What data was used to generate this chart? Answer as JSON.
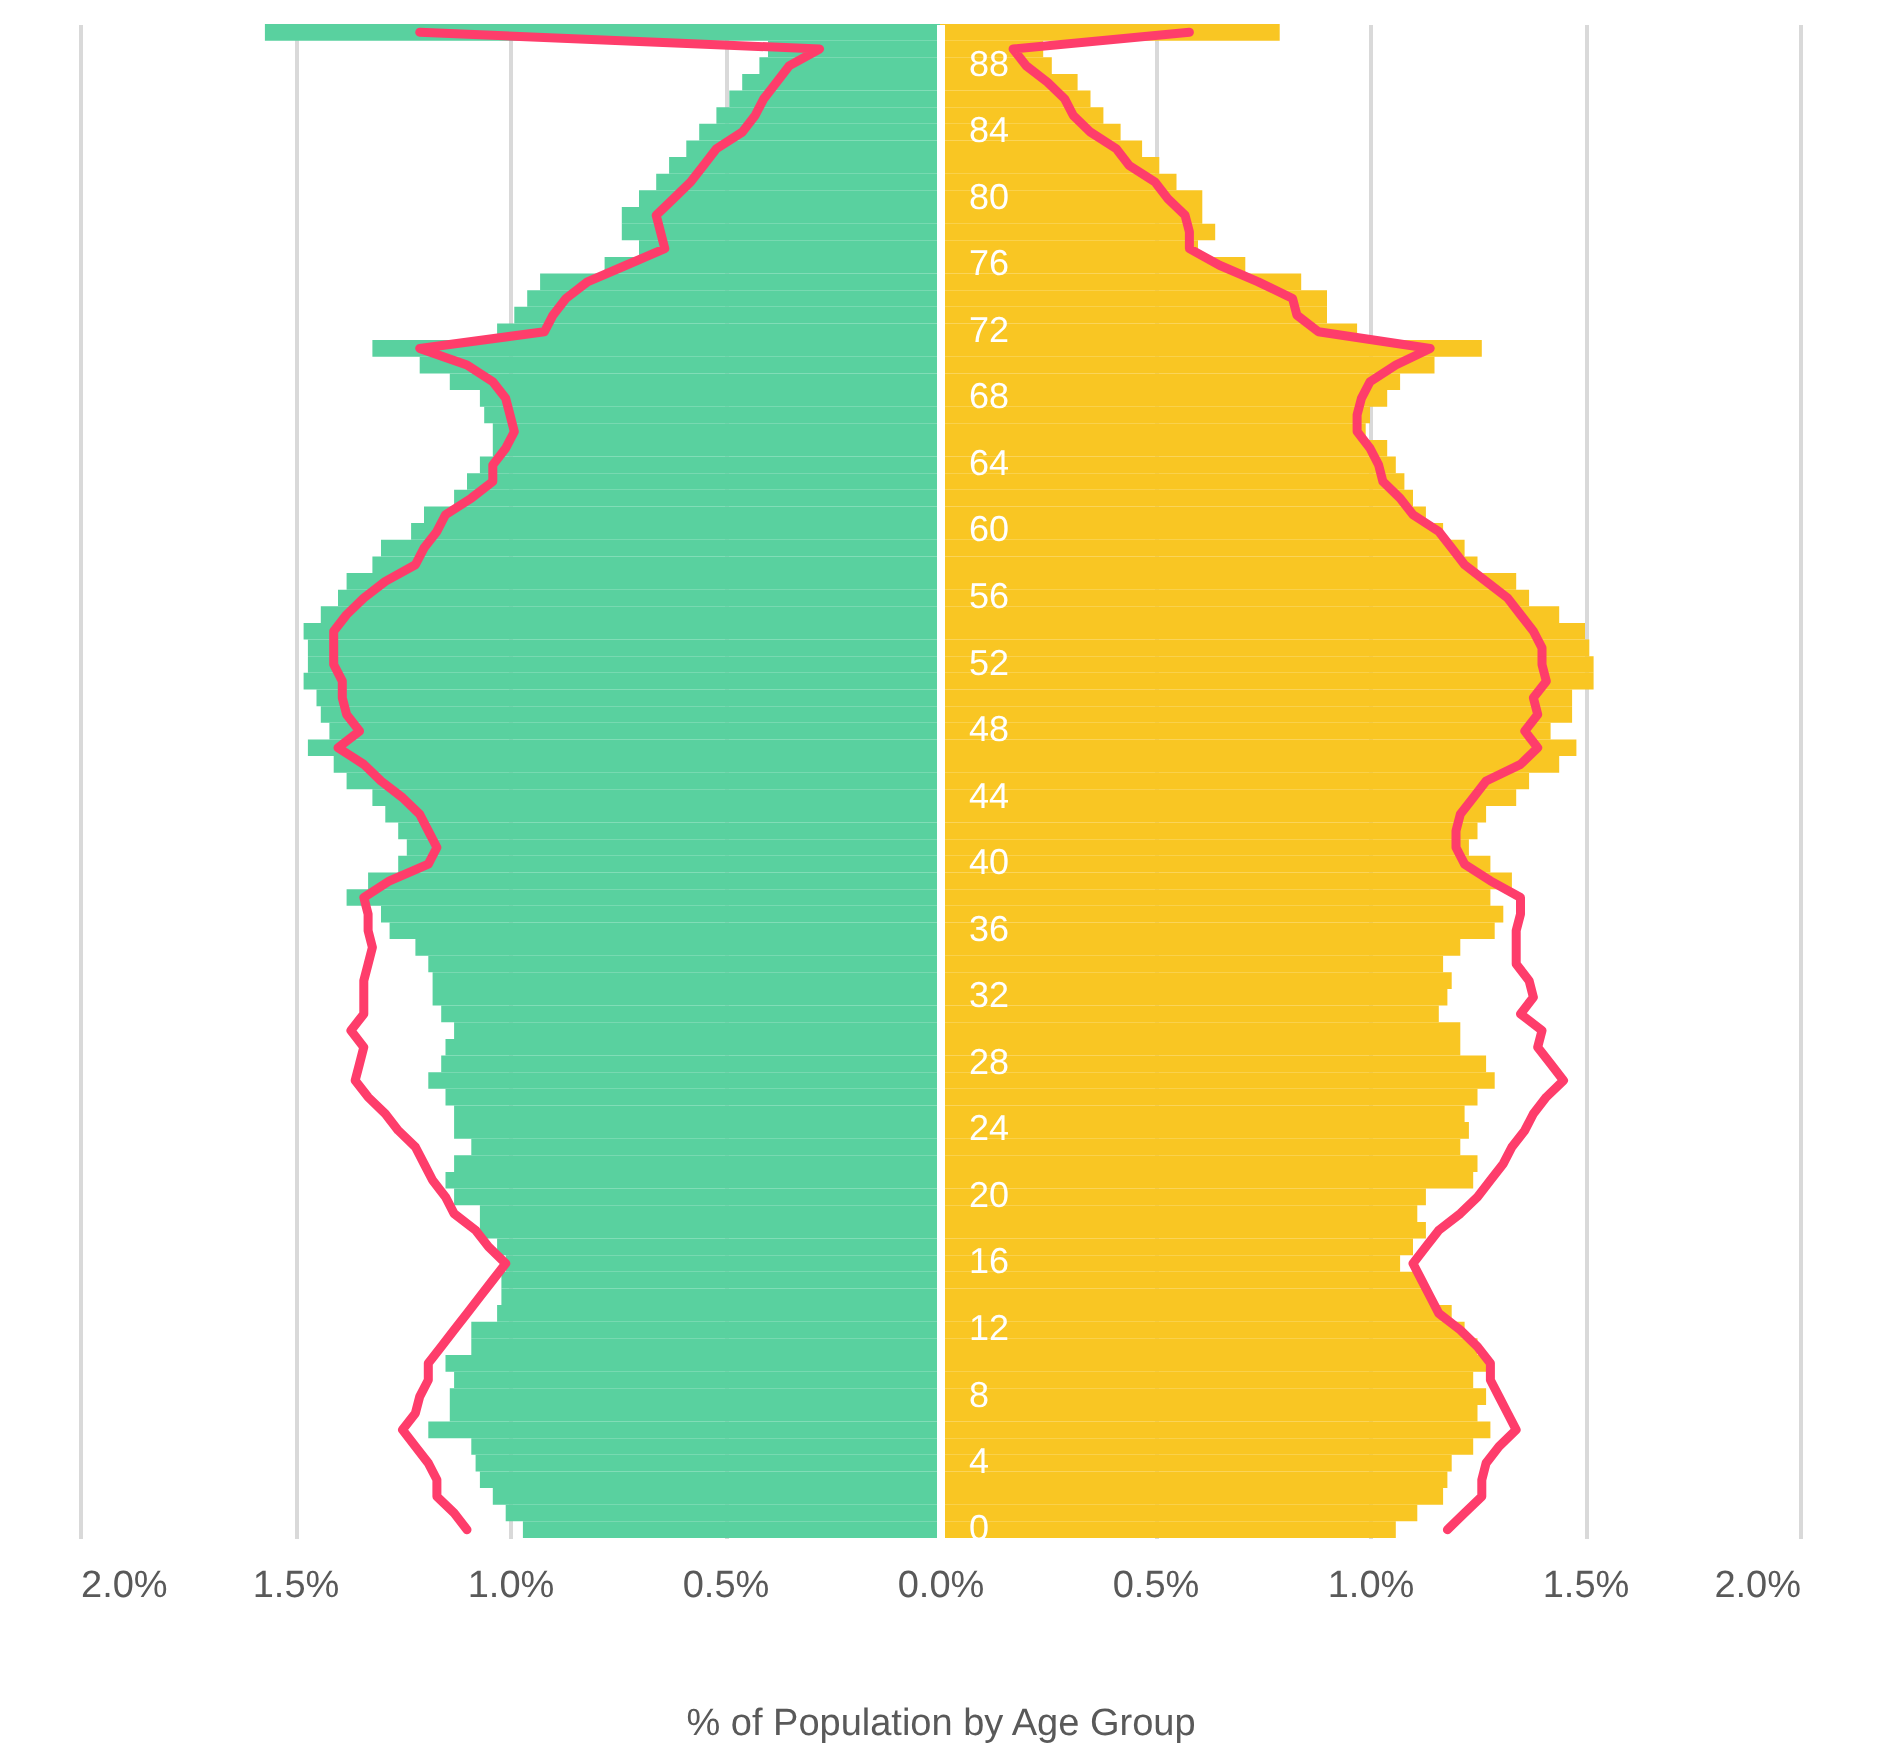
{
  "chart_data": {
    "type": "bar",
    "orientation": "horizontal",
    "xlabel": "% of Population by Age Group",
    "categories": [
      null,
      null,
      "88",
      null,
      null,
      null,
      "84",
      null,
      null,
      null,
      "80",
      null,
      null,
      null,
      "76",
      null,
      null,
      null,
      "72",
      null,
      null,
      null,
      "68",
      null,
      null,
      null,
      "64",
      null,
      null,
      null,
      "60",
      null,
      null,
      null,
      "56",
      null,
      null,
      null,
      "52",
      null,
      null,
      null,
      "48",
      null,
      null,
      null,
      "44",
      null,
      null,
      null,
      "40",
      null,
      null,
      null,
      "36",
      null,
      null,
      null,
      "32",
      null,
      null,
      null,
      "28",
      null,
      null,
      null,
      "24",
      null,
      null,
      null,
      "20",
      null,
      null,
      null,
      "16",
      null,
      null,
      null,
      "12",
      null,
      null,
      null,
      "8",
      null,
      null,
      null,
      "4",
      null,
      null,
      null,
      "0"
    ],
    "series": [
      {
        "color": "#59d19f",
        "values": [
          -1.57,
          -0.4,
          -0.42,
          -0.46,
          -0.49,
          -0.52,
          -0.56,
          -0.59,
          -0.63,
          -0.66,
          -0.7,
          -0.74,
          -0.74,
          -0.7,
          -0.78,
          -0.93,
          -0.96,
          -0.99,
          -1.03,
          -1.32,
          -1.21,
          -1.14,
          -1.07,
          -1.06,
          -1.04,
          -1.04,
          -1.07,
          -1.1,
          -1.13,
          -1.2,
          -1.23,
          -1.3,
          -1.32,
          -1.38,
          -1.4,
          -1.44,
          -1.48,
          -1.47,
          -1.47,
          -1.48,
          -1.45,
          -1.44,
          -1.42,
          -1.47,
          -1.41,
          -1.38,
          -1.32,
          -1.29,
          -1.26,
          -1.24,
          -1.26,
          -1.33,
          -1.38,
          -1.3,
          -1.28,
          -1.22,
          -1.19,
          -1.18,
          -1.18,
          -1.16,
          -1.13,
          -1.15,
          -1.16,
          -1.19,
          -1.15,
          -1.13,
          -1.13,
          -1.09,
          -1.13,
          -1.15,
          -1.13,
          -1.07,
          -1.07,
          -1.03,
          -1.01,
          -1.02,
          -1.02,
          -1.03,
          -1.09,
          -1.09,
          -1.15,
          -1.13,
          -1.14,
          -1.14,
          -1.19,
          -1.09,
          -1.08,
          -1.07,
          -1.04,
          -1.01,
          -0.97
        ]
      },
      {
        "color": "#f9c623",
        "values": [
          0.79,
          0.24,
          0.26,
          0.32,
          0.35,
          0.38,
          0.42,
          0.47,
          0.51,
          0.55,
          0.61,
          0.61,
          0.64,
          0.6,
          0.71,
          0.84,
          0.9,
          0.9,
          0.97,
          1.26,
          1.15,
          1.07,
          1.04,
          1.0,
          0.99,
          1.04,
          1.06,
          1.08,
          1.1,
          1.13,
          1.17,
          1.22,
          1.25,
          1.34,
          1.37,
          1.44,
          1.5,
          1.51,
          1.52,
          1.52,
          1.47,
          1.47,
          1.42,
          1.48,
          1.44,
          1.37,
          1.34,
          1.27,
          1.25,
          1.23,
          1.28,
          1.33,
          1.28,
          1.31,
          1.29,
          1.21,
          1.17,
          1.19,
          1.18,
          1.16,
          1.21,
          1.21,
          1.27,
          1.29,
          1.25,
          1.22,
          1.23,
          1.21,
          1.25,
          1.24,
          1.13,
          1.11,
          1.13,
          1.1,
          1.07,
          1.12,
          1.14,
          1.19,
          1.22,
          1.25,
          1.27,
          1.24,
          1.27,
          1.25,
          1.28,
          1.24,
          1.19,
          1.18,
          1.17,
          1.11,
          1.06
        ]
      },
      {
        "type": "line",
        "color": "#fe3d6b",
        "values": [
          -1.21,
          -0.28,
          -0.35,
          -0.38,
          -0.41,
          -0.43,
          -0.46,
          -0.52,
          -0.55,
          -0.58,
          -0.62,
          -0.66,
          -0.65,
          -0.64,
          -0.73,
          -0.82,
          -0.87,
          -0.9,
          -0.92,
          -1.21,
          -1.1,
          -1.04,
          -1.01,
          -1.0,
          -0.99,
          -1.01,
          -1.04,
          -1.04,
          -1.09,
          -1.15,
          -1.17,
          -1.2,
          -1.22,
          -1.29,
          -1.34,
          -1.38,
          -1.41,
          -1.41,
          -1.41,
          -1.39,
          -1.39,
          -1.38,
          -1.35,
          -1.4,
          -1.34,
          -1.3,
          -1.25,
          -1.21,
          -1.19,
          -1.17,
          -1.19,
          -1.28,
          -1.34,
          -1.33,
          -1.33,
          -1.32,
          -1.33,
          -1.34,
          -1.34,
          -1.34,
          -1.37,
          -1.34,
          -1.35,
          -1.36,
          -1.33,
          -1.29,
          -1.26,
          -1.22,
          -1.2,
          -1.18,
          -1.15,
          -1.13,
          -1.08,
          -1.05,
          -1.01,
          -1.04,
          -1.07,
          -1.1,
          -1.13,
          -1.16,
          -1.19,
          -1.19,
          -1.21,
          -1.22,
          -1.25,
          -1.22,
          -1.19,
          -1.17,
          -1.17,
          -1.13,
          -1.1
        ]
      },
      {
        "type": "line",
        "color": "#fe3d6b",
        "values": [
          0.58,
          0.17,
          0.2,
          0.25,
          0.29,
          0.31,
          0.35,
          0.41,
          0.44,
          0.5,
          0.53,
          0.57,
          0.58,
          0.58,
          0.65,
          0.74,
          0.82,
          0.83,
          0.88,
          1.14,
          1.06,
          1.0,
          0.98,
          0.97,
          0.97,
          1.0,
          1.02,
          1.03,
          1.07,
          1.1,
          1.16,
          1.19,
          1.22,
          1.27,
          1.32,
          1.35,
          1.38,
          1.4,
          1.4,
          1.41,
          1.38,
          1.39,
          1.36,
          1.39,
          1.35,
          1.27,
          1.24,
          1.21,
          1.2,
          1.2,
          1.22,
          1.28,
          1.35,
          1.35,
          1.34,
          1.34,
          1.34,
          1.37,
          1.38,
          1.35,
          1.4,
          1.39,
          1.42,
          1.45,
          1.41,
          1.38,
          1.36,
          1.33,
          1.31,
          1.28,
          1.25,
          1.21,
          1.16,
          1.13,
          1.1,
          1.12,
          1.14,
          1.16,
          1.21,
          1.25,
          1.28,
          1.28,
          1.3,
          1.32,
          1.34,
          1.3,
          1.27,
          1.26,
          1.26,
          1.22,
          1.18
        ]
      }
    ],
    "xlim": [
      -2.0,
      2.0
    ],
    "xticks": [
      {
        "value": -2.0,
        "label": "2.0%"
      },
      {
        "value": -1.5,
        "label": "1.5%"
      },
      {
        "value": -1.0,
        "label": "1.0%"
      },
      {
        "value": -0.5,
        "label": "0.5%"
      },
      {
        "value": 0.0,
        "label": "0.0%"
      },
      {
        "value": 0.5,
        "label": "0.5%"
      },
      {
        "value": 1.0,
        "label": "1.0%"
      },
      {
        "value": 1.5,
        "label": "1.5%"
      },
      {
        "value": 2.0,
        "label": "2.0%"
      }
    ],
    "stacked": true,
    "grid": "x"
  }
}
